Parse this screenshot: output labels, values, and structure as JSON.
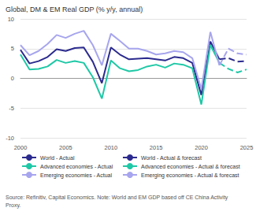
{
  "chart_data": {
    "type": "line",
    "title": "Global, DM & EM Real GDP (% y/y, annual)",
    "source": "Source: Refinitiv, Capital Economics. Note: World and EM GDP based off CE China Activity Proxy.",
    "x": [
      2000,
      2001,
      2002,
      2003,
      2004,
      2005,
      2006,
      2007,
      2008,
      2009,
      2010,
      2011,
      2012,
      2013,
      2014,
      2015,
      2016,
      2017,
      2018,
      2019,
      2020,
      2021,
      2022,
      2023,
      2024,
      2025
    ],
    "xlim": [
      2000,
      2025
    ],
    "xticks": [
      2000,
      2005,
      2010,
      2015,
      2020,
      2025
    ],
    "ylim": [
      -10,
      10
    ],
    "yticks": [
      -10,
      -5,
      0,
      5,
      10
    ],
    "grid": true,
    "legend": "bottom",
    "series": [
      {
        "name": "World - Actual",
        "color": "#2b2a8e",
        "line_style": "solid",
        "values": [
          4.8,
          2.5,
          2.9,
          3.6,
          4.9,
          4.6,
          5.1,
          5.2,
          2.8,
          -0.8,
          5.2,
          4.0,
          3.2,
          3.3,
          3.4,
          3.2,
          3.0,
          3.6,
          3.4,
          2.6,
          -2.8,
          6.2,
          3.2,
          null,
          null,
          null
        ]
      },
      {
        "name": "World - Actual & forecast",
        "color": "#2b2a8e",
        "line_style": "dashed",
        "values": [
          null,
          null,
          null,
          null,
          null,
          null,
          null,
          null,
          null,
          null,
          null,
          null,
          null,
          null,
          null,
          null,
          null,
          null,
          null,
          null,
          null,
          null,
          3.2,
          3.4,
          2.8,
          2.9
        ]
      },
      {
        "name": "Advanced economies - Actual",
        "color": "#1ec8a6",
        "line_style": "solid",
        "values": [
          4.0,
          1.5,
          1.6,
          2.0,
          3.1,
          2.6,
          2.9,
          2.6,
          0.2,
          -3.4,
          3.0,
          1.7,
          1.2,
          1.4,
          2.0,
          2.3,
          1.8,
          2.5,
          2.3,
          1.7,
          -4.4,
          5.6,
          2.6,
          null,
          null,
          null
        ]
      },
      {
        "name": "Advanced economies - Actual & forecast",
        "color": "#1ec8a6",
        "line_style": "dashed",
        "values": [
          null,
          null,
          null,
          null,
          null,
          null,
          null,
          null,
          null,
          null,
          null,
          null,
          null,
          null,
          null,
          null,
          null,
          null,
          null,
          null,
          null,
          null,
          2.6,
          1.6,
          1.0,
          1.5
        ]
      },
      {
        "name": "Emerging economies - Actual",
        "color": "#a7a5ee",
        "line_style": "solid",
        "values": [
          5.6,
          3.9,
          4.6,
          5.8,
          7.3,
          6.8,
          7.5,
          8.0,
          5.6,
          2.2,
          7.5,
          6.3,
          5.0,
          5.0,
          4.6,
          4.0,
          4.2,
          4.6,
          4.4,
          3.4,
          -1.8,
          7.8,
          2.2,
          null,
          null,
          null
        ]
      },
      {
        "name": "Emerging economies - Actual & forecast",
        "color": "#a7a5ee",
        "line_style": "dashed",
        "values": [
          null,
          null,
          null,
          null,
          null,
          null,
          null,
          null,
          null,
          null,
          null,
          null,
          null,
          null,
          null,
          null,
          null,
          null,
          null,
          null,
          null,
          null,
          2.2,
          5.0,
          4.2,
          4.0
        ]
      }
    ]
  }
}
